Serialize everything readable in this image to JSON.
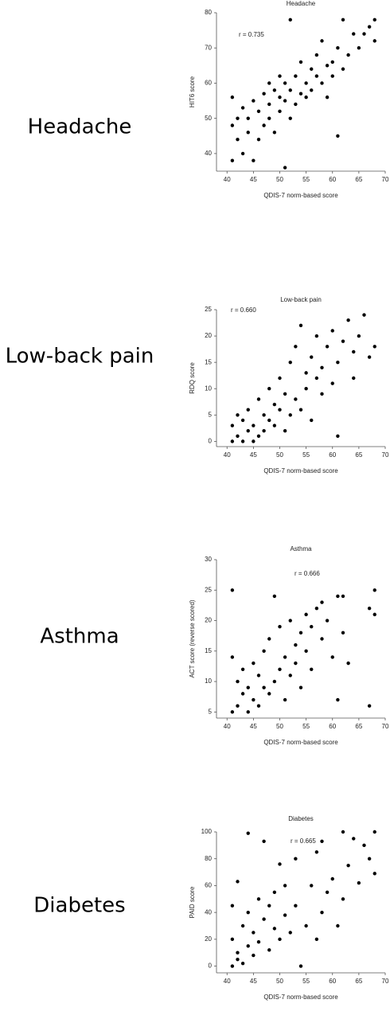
{
  "chart_data": [
    {
      "type": "scatter",
      "row_label": "Headache",
      "title": "Headache",
      "annotation": "r = 0.735",
      "x_label": "QDIS-7 norm-based score",
      "y_label": "HIT6 score",
      "color": "#000000",
      "xlim": [
        38,
        70
      ],
      "ylim": [
        35,
        80
      ],
      "xticks": [
        40,
        45,
        50,
        55,
        60,
        65,
        70
      ],
      "yticks": [
        40,
        50,
        60,
        70,
        80
      ],
      "x": [
        41,
        41,
        41,
        42,
        42,
        43,
        43,
        44,
        44,
        45,
        45,
        46,
        46,
        47,
        47,
        48,
        48,
        48,
        49,
        49,
        50,
        50,
        50,
        51,
        51,
        51,
        52,
        52,
        52,
        53,
        53,
        54,
        54,
        55,
        55,
        56,
        56,
        57,
        57,
        58,
        58,
        59,
        59,
        60,
        60,
        61,
        61,
        62,
        62,
        63,
        64,
        65,
        66,
        67,
        68,
        68
      ],
      "y": [
        38,
        48,
        56,
        44,
        50,
        40,
        53,
        46,
        50,
        38,
        55,
        44,
        52,
        48,
        57,
        50,
        54,
        60,
        46,
        58,
        52,
        56,
        62,
        36,
        55,
        60,
        78,
        50,
        58,
        54,
        62,
        57,
        66,
        56,
        60,
        64,
        58,
        62,
        68,
        60,
        72,
        65,
        56,
        66,
        62,
        70,
        45,
        64,
        78,
        68,
        74,
        70,
        74,
        76,
        78,
        72
      ]
    },
    {
      "type": "scatter",
      "row_label": "Low-back pain",
      "title": "Low-back pain",
      "annotation": "r = 0.660",
      "x_label": "QDIS-7 norm-based score",
      "y_label": "RDQ score",
      "color": "#000000",
      "xlim": [
        38,
        70
      ],
      "ylim": [
        -1,
        25
      ],
      "xticks": [
        40,
        45,
        50,
        55,
        60,
        65,
        70
      ],
      "yticks": [
        0,
        5,
        10,
        15,
        20,
        25
      ],
      "x": [
        41,
        41,
        42,
        42,
        43,
        43,
        44,
        44,
        45,
        45,
        46,
        46,
        47,
        47,
        48,
        48,
        49,
        49,
        50,
        50,
        51,
        51,
        52,
        52,
        53,
        53,
        54,
        54,
        55,
        55,
        56,
        56,
        57,
        57,
        58,
        58,
        59,
        60,
        60,
        61,
        61,
        62,
        63,
        64,
        64,
        65,
        66,
        67,
        68
      ],
      "y": [
        0,
        3,
        1,
        5,
        0,
        4,
        2,
        6,
        0,
        3,
        1,
        8,
        2,
        5,
        4,
        10,
        3,
        7,
        6,
        12,
        2,
        9,
        5,
        15,
        8,
        18,
        6,
        22,
        10,
        13,
        4,
        16,
        12,
        20,
        9,
        14,
        18,
        11,
        21,
        1,
        15,
        19,
        23,
        12,
        17,
        20,
        24,
        16,
        18
      ]
    },
    {
      "type": "scatter",
      "row_label": "Asthma",
      "title": "Asthma",
      "annotation": "r = 0.666",
      "x_label": "QDIS-7 norm-based score",
      "y_label": "ACT score (reverse scored)",
      "color": "#000000",
      "xlim": [
        38,
        70
      ],
      "ylim": [
        4,
        30
      ],
      "xticks": [
        40,
        45,
        50,
        55,
        60,
        65,
        70
      ],
      "yticks": [
        5,
        10,
        15,
        20,
        25,
        30
      ],
      "x": [
        41,
        41,
        41,
        42,
        42,
        43,
        43,
        44,
        44,
        45,
        45,
        46,
        46,
        47,
        47,
        48,
        48,
        49,
        49,
        50,
        50,
        51,
        51,
        52,
        52,
        53,
        53,
        54,
        54,
        55,
        55,
        56,
        56,
        57,
        58,
        58,
        59,
        60,
        61,
        61,
        62,
        62,
        63,
        67,
        67,
        68,
        68
      ],
      "y": [
        5,
        25,
        14,
        6,
        10,
        8,
        12,
        5,
        9,
        7,
        13,
        6,
        11,
        9,
        15,
        8,
        17,
        10,
        24,
        12,
        19,
        7,
        14,
        11,
        20,
        13,
        16,
        9,
        18,
        15,
        21,
        12,
        19,
        22,
        17,
        23,
        20,
        14,
        24,
        7,
        24,
        18,
        13,
        6,
        22,
        25,
        21
      ]
    },
    {
      "type": "scatter",
      "row_label": "Diabetes",
      "title": "Diabetes",
      "annotation": "r = 0.665",
      "x_label": "QDIS-7 norm-based score",
      "y_label": "PAID score",
      "color": "#000000",
      "xlim": [
        38,
        70
      ],
      "ylim": [
        -5,
        100
      ],
      "xticks": [
        40,
        45,
        50,
        55,
        60,
        65,
        70
      ],
      "yticks": [
        0,
        20,
        40,
        60,
        80,
        100
      ],
      "x": [
        41,
        41,
        41,
        42,
        42,
        42,
        43,
        43,
        44,
        44,
        44,
        45,
        45,
        46,
        46,
        47,
        47,
        48,
        48,
        49,
        49,
        50,
        50,
        51,
        51,
        52,
        53,
        53,
        54,
        55,
        56,
        57,
        57,
        58,
        58,
        59,
        60,
        61,
        62,
        62,
        63,
        64,
        65,
        66,
        67,
        68,
        68
      ],
      "y": [
        0,
        20,
        45,
        10,
        63,
        5,
        30,
        2,
        15,
        99,
        40,
        8,
        25,
        50,
        18,
        35,
        93,
        12,
        45,
        28,
        55,
        20,
        76,
        38,
        60,
        25,
        45,
        80,
        0,
        30,
        60,
        20,
        85,
        40,
        93,
        55,
        65,
        30,
        100,
        50,
        75,
        95,
        62,
        90,
        80,
        100,
        69
      ]
    }
  ]
}
